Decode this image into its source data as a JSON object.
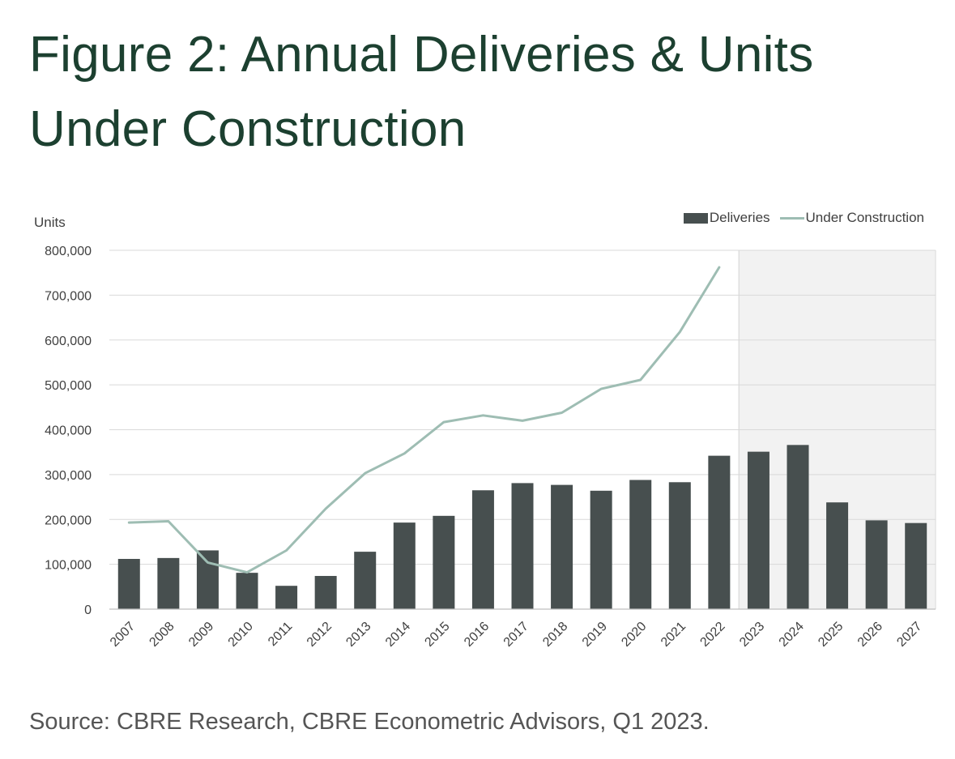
{
  "title": "Figure 2: Annual Deliveries & Units Under Construction",
  "source": "Source: CBRE Research, CBRE Econometric Advisors, Q1 2023.",
  "chart_data": {
    "type": "bar",
    "ylabel": "Units",
    "ylim": [
      0,
      800000
    ],
    "yticks": [
      0,
      100000,
      200000,
      300000,
      400000,
      500000,
      600000,
      700000,
      800000
    ],
    "ytick_labels": [
      "0",
      "100,000",
      "200,000",
      "300,000",
      "400,000",
      "500,000",
      "600,000",
      "700,000",
      "800,000"
    ],
    "categories": [
      "2007",
      "2008",
      "2009",
      "2010",
      "2011",
      "2012",
      "2013",
      "2014",
      "2015",
      "2016",
      "2017",
      "2018",
      "2019",
      "2020",
      "2021",
      "2022",
      "2023",
      "2024",
      "2025",
      "2026",
      "2027"
    ],
    "forecast_start": "2023",
    "grid": true,
    "legend_position": "top-right",
    "series": [
      {
        "name": "Deliveries",
        "type": "bar",
        "color": "#474f4f",
        "values": [
          112000,
          114000,
          131000,
          81000,
          52000,
          74000,
          128000,
          193000,
          208000,
          265000,
          281000,
          277000,
          264000,
          288000,
          283000,
          342000,
          351000,
          366000,
          238000,
          198000,
          192000
        ]
      },
      {
        "name": "Under Construction",
        "type": "line",
        "color": "#9ebdb3",
        "values": [
          193000,
          196000,
          104000,
          82000,
          131000,
          224000,
          303000,
          347000,
          417000,
          432000,
          420000,
          438000,
          491000,
          511000,
          618000,
          762000,
          null,
          null,
          null,
          null,
          null
        ]
      }
    ]
  }
}
